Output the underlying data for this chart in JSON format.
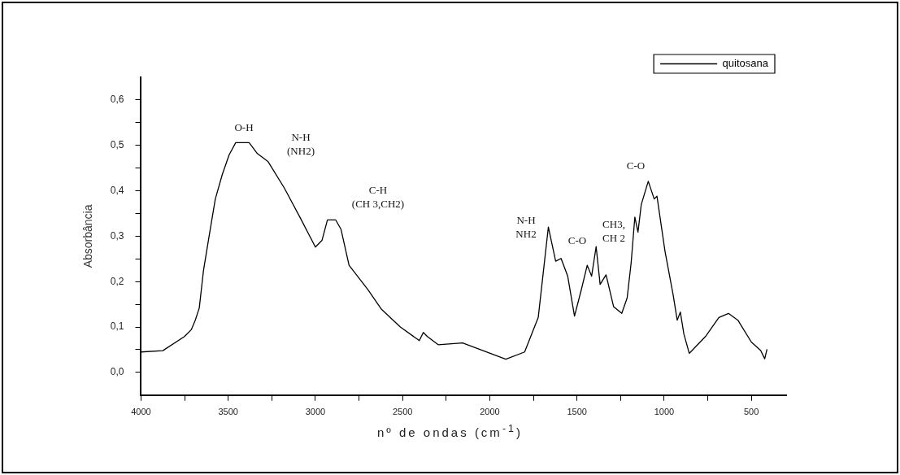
{
  "chart_data": {
    "type": "line",
    "xlabel": "nº de ondas (cm$^{-1}$)",
    "ylabel": "Absorbância",
    "xlim": [
      4000,
      300
    ],
    "ylim": [
      -0.05,
      0.65
    ],
    "xticks": [
      4000,
      {
        "value": 3750,
        "label": null
      },
      3500,
      {
        "value": 3250,
        "label": null
      },
      3000,
      {
        "value": 2750,
        "label": null
      },
      2500,
      {
        "value": 2250,
        "label": null
      },
      2000,
      {
        "value": 1750,
        "label": null
      },
      1500,
      {
        "value": 1250,
        "label": null
      },
      1000,
      {
        "value": 750,
        "label": null
      },
      500
    ],
    "yticks": [
      {
        "value": 0,
        "label": "0,0"
      },
      {
        "value": 0.05,
        "label": null
      },
      {
        "value": 0.1,
        "label": "0,1"
      },
      {
        "value": 0.15,
        "label": null
      },
      {
        "value": 0.2,
        "label": "0,2"
      },
      {
        "value": 0.25,
        "label": null
      },
      {
        "value": 0.3,
        "label": "0,3"
      },
      {
        "value": 0.35,
        "label": null
      },
      {
        "value": 0.4,
        "label": "0,4"
      },
      {
        "value": 0.45,
        "label": null
      },
      {
        "value": 0.5,
        "label": "0,5"
      },
      {
        "value": 0.55,
        "label": null
      },
      {
        "value": 0.6,
        "label": "0,6"
      }
    ],
    "grid": false,
    "legend": "top right",
    "marker": "none",
    "line_style": "solid",
    "series": [
      {
        "name": "quitosana",
        "color": "#000000",
        "x": [
          4000,
          3875,
          3751,
          3712,
          3689,
          3666,
          3642,
          3611,
          3574,
          3534,
          3495,
          3457,
          3380,
          3333,
          3271,
          3178,
          3085,
          3000,
          2962,
          2931,
          2884,
          2853,
          2807,
          2698,
          2621,
          2513,
          2404,
          2381,
          2358,
          2296,
          2156,
          1908,
          1800,
          1722,
          1692,
          1664,
          1622,
          1591,
          1553,
          1514,
          1475,
          1441,
          1416,
          1390,
          1367,
          1333,
          1290,
          1243,
          1212,
          1189,
          1168,
          1150,
          1131,
          1091,
          1057,
          1041,
          995,
          948,
          925,
          907,
          887,
          856,
          763,
          686,
          631,
          577,
          500,
          446,
          423,
          410
        ],
        "values": [
          0.045,
          0.048,
          0.079,
          0.094,
          0.115,
          0.142,
          0.224,
          0.297,
          0.382,
          0.436,
          0.479,
          0.506,
          0.506,
          0.482,
          0.464,
          0.406,
          0.339,
          0.276,
          0.291,
          0.336,
          0.336,
          0.315,
          0.236,
          0.182,
          0.139,
          0.1,
          0.07,
          0.088,
          0.079,
          0.061,
          0.065,
          0.029,
          0.045,
          0.121,
          0.224,
          0.32,
          0.245,
          0.251,
          0.212,
          0.124,
          0.182,
          0.236,
          0.212,
          0.277,
          0.194,
          0.215,
          0.145,
          0.13,
          0.164,
          0.242,
          0.342,
          0.309,
          0.37,
          0.421,
          0.382,
          0.388,
          0.267,
          0.17,
          0.115,
          0.133,
          0.085,
          0.042,
          0.079,
          0.121,
          0.13,
          0.115,
          0.067,
          0.048,
          0.03,
          0.051
        ]
      }
    ],
    "annotations": [
      "O-H",
      "N-H\n(NH2)",
      "C-H\n(CH 3,CH2)",
      "N-H\nNH2",
      "C-O",
      "CH3,\nCH 2",
      "C-O"
    ]
  }
}
